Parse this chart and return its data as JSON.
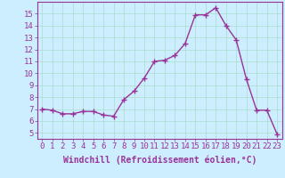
{
  "x": [
    0,
    1,
    2,
    3,
    4,
    5,
    6,
    7,
    8,
    9,
    10,
    11,
    12,
    13,
    14,
    15,
    16,
    17,
    18,
    19,
    20,
    21,
    22,
    23
  ],
  "y": [
    7.0,
    6.9,
    6.6,
    6.6,
    6.8,
    6.8,
    6.5,
    6.4,
    7.8,
    8.5,
    9.6,
    11.0,
    11.1,
    11.5,
    12.5,
    14.9,
    14.9,
    15.5,
    14.0,
    12.8,
    9.5,
    6.9,
    6.9,
    4.9
  ],
  "line_color": "#993399",
  "marker": "+",
  "marker_size": 4,
  "bg_color": "#cceeff",
  "grid_color": "#aaddcc",
  "xlabel": "Windchill (Refroidissement éolien,°C)",
  "xlabel_fontsize": 7,
  "xtick_labels": [
    "0",
    "1",
    "2",
    "3",
    "4",
    "5",
    "6",
    "7",
    "8",
    "9",
    "10",
    "11",
    "12",
    "13",
    "14",
    "15",
    "16",
    "17",
    "18",
    "19",
    "20",
    "21",
    "22",
    "23"
  ],
  "ytick_labels": [
    "5",
    "6",
    "7",
    "8",
    "9",
    "10",
    "11",
    "12",
    "13",
    "14",
    "15"
  ],
  "ylim": [
    4.5,
    16.0
  ],
  "xlim": [
    -0.5,
    23.5
  ],
  "tick_color": "#993399",
  "tick_fontsize": 6.5,
  "spine_color": "#993399",
  "linewidth": 1.0
}
